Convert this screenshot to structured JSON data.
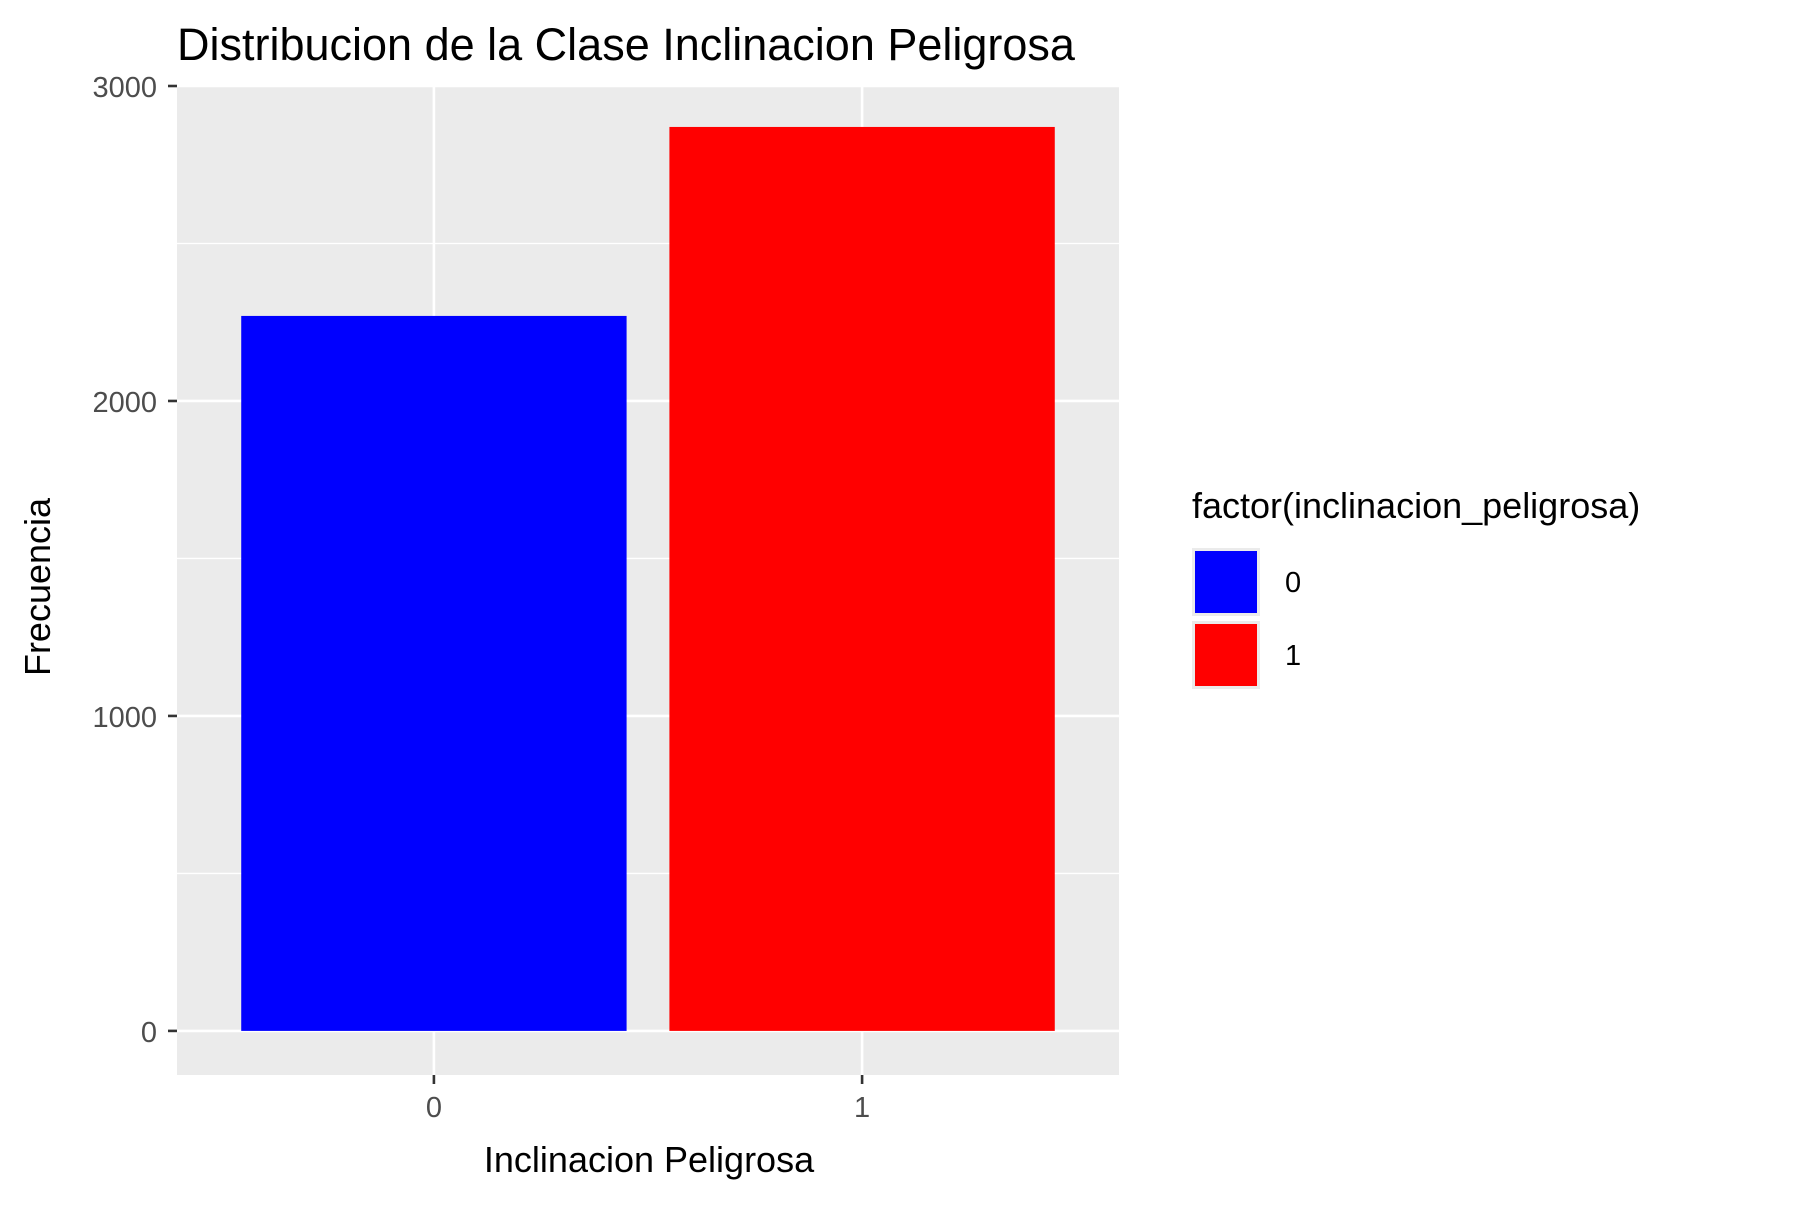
{
  "chart_data": {
    "type": "bar",
    "title": "Distribucion de la Clase Inclinacion Peligrosa",
    "xlabel": "Inclinacion Peligrosa",
    "ylabel": "Frecuencia",
    "categories": [
      "0",
      "1"
    ],
    "values": [
      2270,
      2870
    ],
    "ylim": [
      -140,
      3000
    ],
    "yticks": [
      0,
      1000,
      2000,
      3000
    ],
    "grid": true,
    "legend": {
      "title": "factor(inclinacion_peligrosa)",
      "placement": "right",
      "entries": [
        "0",
        "1"
      ]
    },
    "colors": {
      "0": "#0000FF",
      "1": "#FF0000",
      "panel": "#EBEBEB",
      "grid": "#FFFFFF",
      "axis_text": "#4D4D4D",
      "tick": "#333333"
    }
  }
}
